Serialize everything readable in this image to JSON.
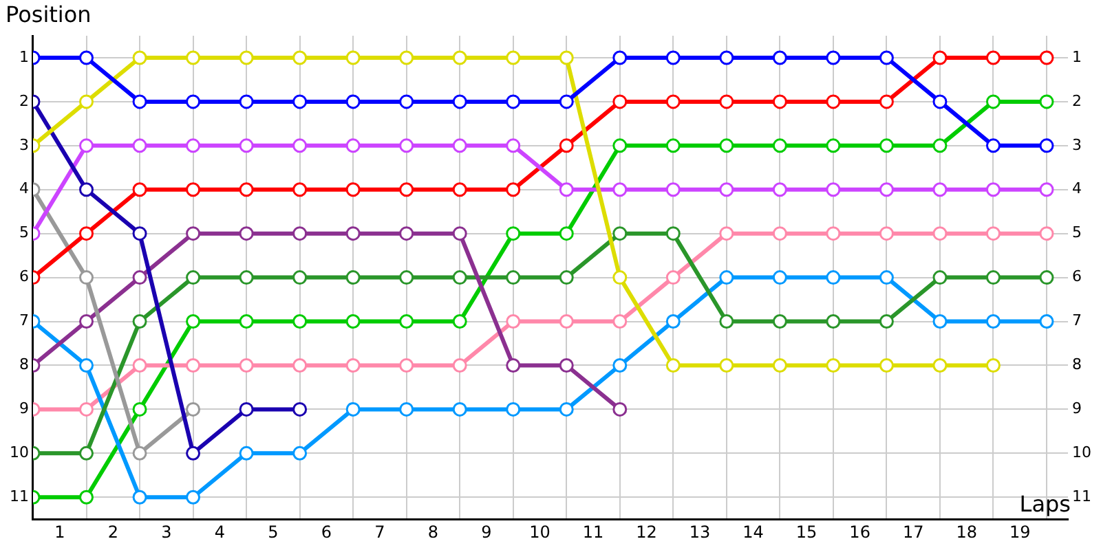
{
  "chart_data": {
    "type": "line",
    "xlabel": "Laps",
    "ylabel": "Position",
    "x": [
      0,
      1,
      2,
      3,
      4,
      5,
      6,
      7,
      8,
      9,
      10,
      11,
      12,
      13,
      14,
      15,
      16,
      17,
      18,
      19
    ],
    "xlim": [
      0,
      19.4
    ],
    "xticks": [
      {
        "value": 0,
        "label": null
      },
      {
        "value": 0.5,
        "label": "1"
      },
      {
        "value": 1,
        "label": null
      },
      {
        "value": 1.5,
        "label": "2"
      },
      {
        "value": 2,
        "label": null
      },
      {
        "value": 2.5,
        "label": "3"
      },
      {
        "value": 3,
        "label": null
      },
      {
        "value": 3.5,
        "label": "4"
      },
      {
        "value": 4,
        "label": null
      },
      {
        "value": 4.5,
        "label": "5"
      },
      {
        "value": 5,
        "label": null
      },
      {
        "value": 5.5,
        "label": "6"
      },
      {
        "value": 6,
        "label": null
      },
      {
        "value": 6.5,
        "label": "7"
      },
      {
        "value": 7,
        "label": null
      },
      {
        "value": 7.5,
        "label": "8"
      },
      {
        "value": 8,
        "label": null
      },
      {
        "value": 8.5,
        "label": "9"
      },
      {
        "value": 9,
        "label": null
      },
      {
        "value": 9.5,
        "label": "10"
      },
      {
        "value": 10,
        "label": null
      },
      {
        "value": 10.5,
        "label": "11"
      },
      {
        "value": 11,
        "label": null
      },
      {
        "value": 11.5,
        "label": "12"
      },
      {
        "value": 12,
        "label": null
      },
      {
        "value": 12.5,
        "label": "13"
      },
      {
        "value": 13,
        "label": null
      },
      {
        "value": 13.5,
        "label": "14"
      },
      {
        "value": 14,
        "label": null
      },
      {
        "value": 14.5,
        "label": "15"
      },
      {
        "value": 15,
        "label": null
      },
      {
        "value": 15.5,
        "label": "16"
      },
      {
        "value": 16,
        "label": null
      },
      {
        "value": 16.5,
        "label": "17"
      },
      {
        "value": 17,
        "label": null
      },
      {
        "value": 17.5,
        "label": "18"
      },
      {
        "value": 18,
        "label": null
      },
      {
        "value": 18.5,
        "label": "19"
      },
      {
        "value": 19,
        "label": null
      }
    ],
    "ylim": [
      11.5,
      0.5
    ],
    "yticks": [
      1,
      2,
      3,
      4,
      5,
      6,
      7,
      8,
      9,
      10,
      11
    ],
    "y2lim": [
      11.5,
      0.5
    ],
    "y2ticks": [
      1,
      2,
      3,
      4,
      5,
      6,
      7,
      8,
      9,
      10,
      11
    ],
    "grid": true,
    "marker": "circle",
    "line_style": "solid",
    "legend": false,
    "series": [
      {
        "color": "#0000ff",
        "values": [
          1,
          1,
          2,
          2,
          2,
          2,
          2,
          2,
          2,
          2,
          2,
          1,
          1,
          1,
          1,
          1,
          1,
          2,
          3,
          3
        ]
      },
      {
        "color": "#dddd00",
        "values": [
          3,
          2,
          1,
          1,
          1,
          1,
          1,
          1,
          1,
          1,
          1,
          6,
          8,
          8,
          8,
          8,
          8,
          8,
          8,
          null
        ]
      },
      {
        "color": "#1a00b0",
        "values": [
          2,
          4,
          5,
          10,
          9,
          9,
          null,
          null,
          null,
          null,
          null,
          null,
          null,
          null,
          null,
          null,
          null,
          null,
          null,
          null
        ]
      },
      {
        "color": "#cc44ff",
        "values": [
          5,
          3,
          3,
          3,
          3,
          3,
          3,
          3,
          3,
          3,
          4,
          4,
          4,
          4,
          4,
          4,
          4,
          4,
          4,
          4
        ]
      },
      {
        "color": "#ff0000",
        "values": [
          6,
          5,
          4,
          4,
          4,
          4,
          4,
          4,
          4,
          4,
          3,
          2,
          2,
          2,
          2,
          2,
          2,
          1,
          1,
          1
        ]
      },
      {
        "color": "#999999",
        "values": [
          4,
          6,
          10,
          9,
          null,
          null,
          null,
          null,
          null,
          null,
          null,
          null,
          null,
          null,
          null,
          null,
          null,
          null,
          null,
          null
        ]
      },
      {
        "color": "#8b3090",
        "values": [
          8,
          7,
          6,
          5,
          5,
          5,
          5,
          5,
          5,
          8,
          8,
          9,
          null,
          null,
          null,
          null,
          null,
          null,
          null,
          null
        ]
      },
      {
        "color": "#2a962a",
        "values": [
          10,
          10,
          7,
          6,
          6,
          6,
          6,
          6,
          6,
          6,
          6,
          5,
          5,
          7,
          7,
          7,
          7,
          6,
          6,
          6
        ]
      },
      {
        "color": "#0099ff",
        "values": [
          7,
          8,
          11,
          11,
          10,
          10,
          9,
          9,
          9,
          9,
          9,
          8,
          7,
          6,
          6,
          6,
          6,
          7,
          7,
          7
        ]
      },
      {
        "color": "#ff88aa",
        "values": [
          9,
          9,
          8,
          8,
          8,
          8,
          8,
          8,
          8,
          7,
          7,
          7,
          6,
          5,
          5,
          5,
          5,
          5,
          5,
          5
        ]
      },
      {
        "color": "#00cc00",
        "values": [
          11,
          11,
          9,
          7,
          7,
          7,
          7,
          7,
          7,
          5,
          5,
          3,
          3,
          3,
          3,
          3,
          3,
          3,
          2,
          2
        ]
      }
    ]
  }
}
